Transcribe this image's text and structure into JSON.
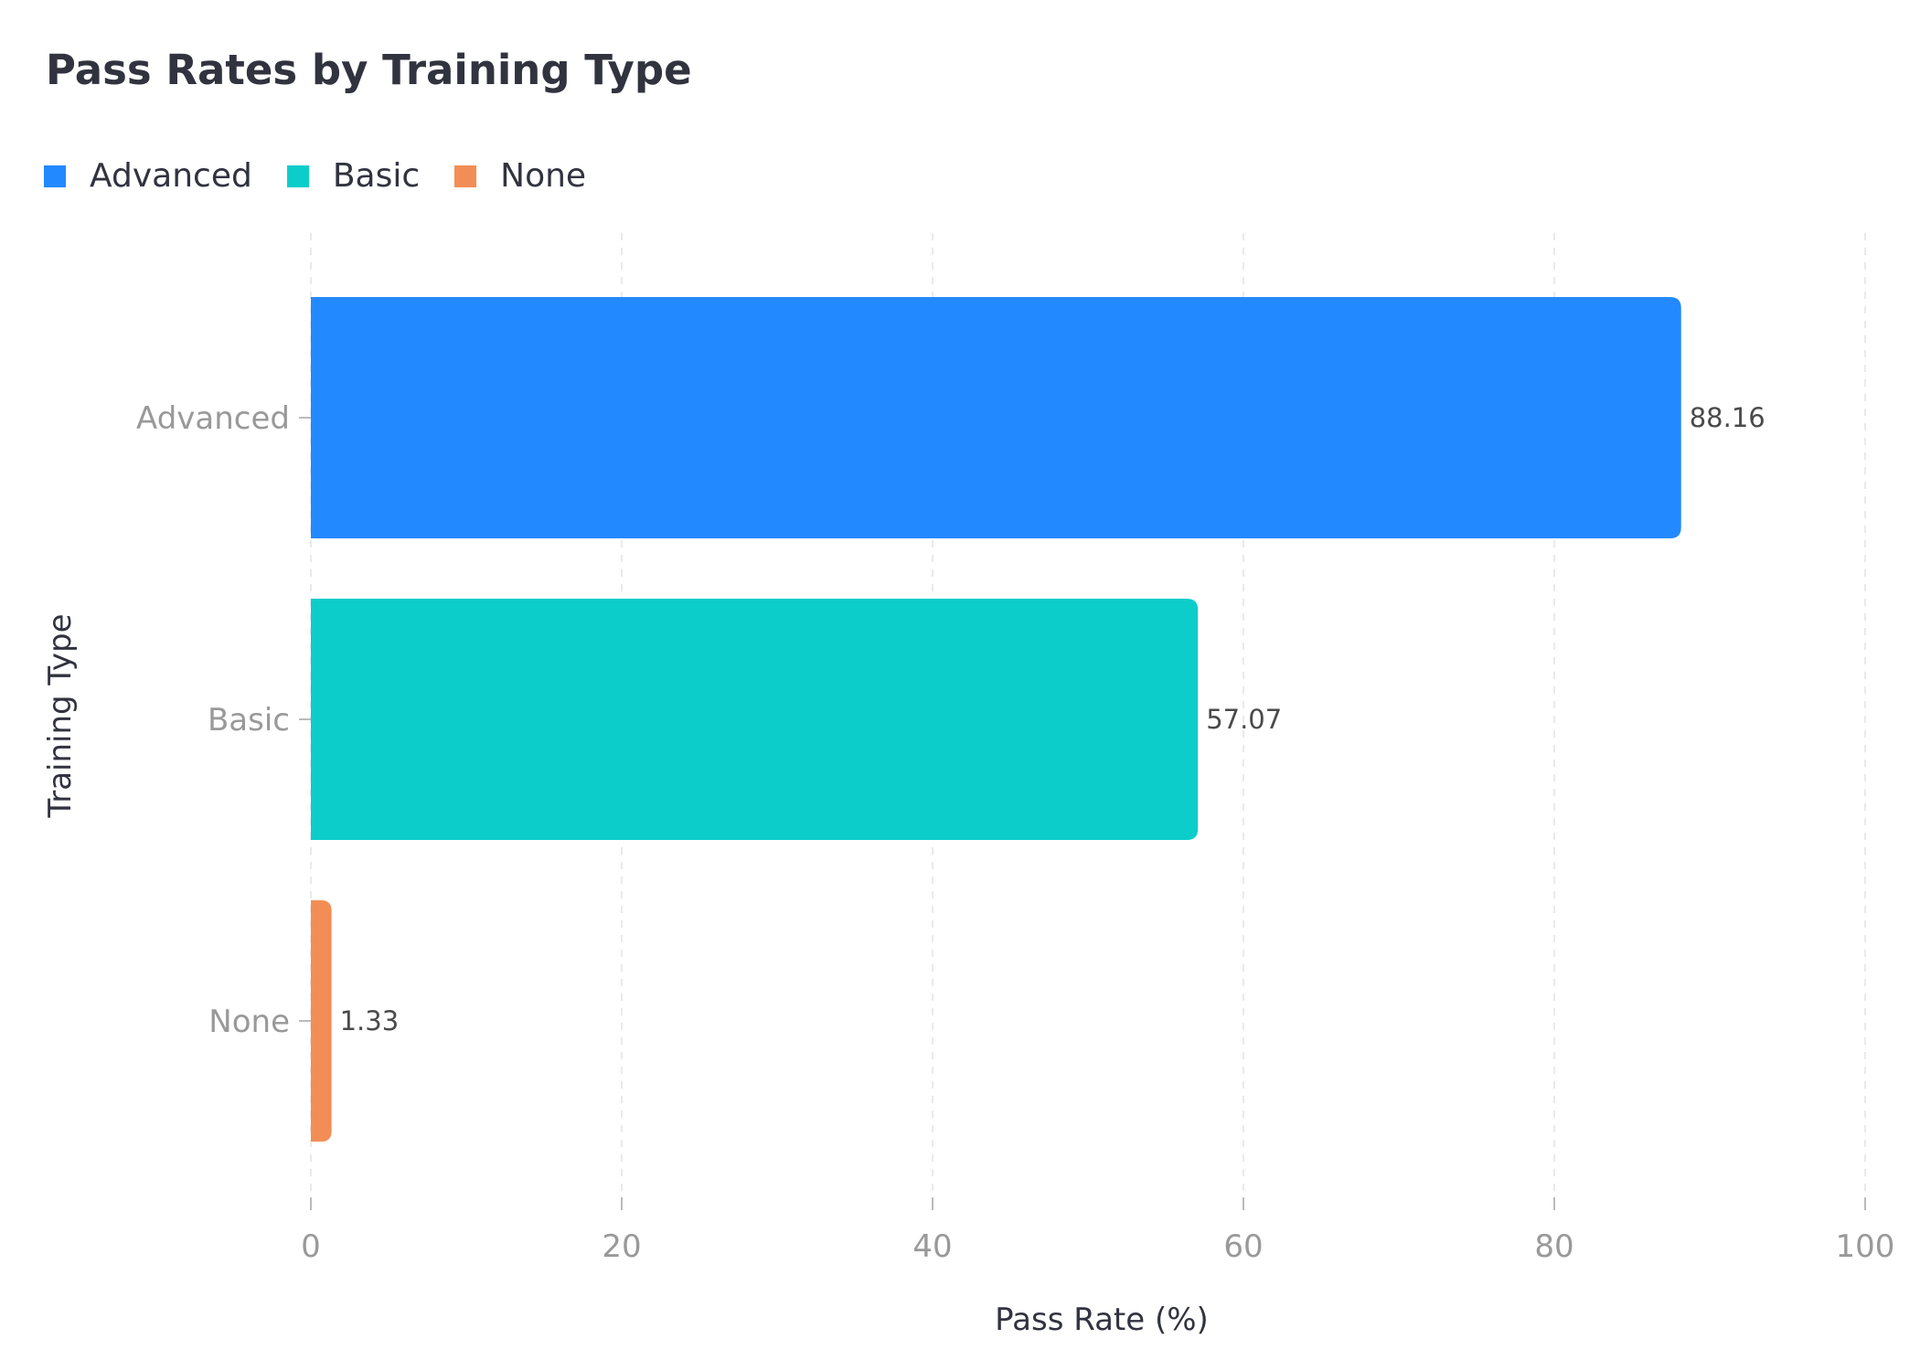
{
  "chart_data": {
    "type": "bar",
    "orientation": "horizontal",
    "title": "Pass Rates by Training Type",
    "xlabel": "Pass Rate (%)",
    "ylabel": "Training Type",
    "categories": [
      "Advanced",
      "Basic",
      "None"
    ],
    "values": [
      88.16,
      57.07,
      1.33
    ],
    "value_labels": [
      "88.16",
      "57.07",
      "1.33"
    ],
    "colors": [
      "#2389ff",
      "#0dcdcb",
      "#f28e55"
    ],
    "xlim": [
      0,
      100
    ],
    "xticks": [
      0,
      20,
      40,
      60,
      80,
      100
    ],
    "xtick_labels": [
      "0",
      "20",
      "40",
      "60",
      "80",
      "100"
    ],
    "grid": "vertical-dashed",
    "legend": {
      "placement": "top-left",
      "entries": [
        {
          "label": "Advanced",
          "color": "#2389ff"
        },
        {
          "label": "Basic",
          "color": "#0dcdcb"
        },
        {
          "label": "None",
          "color": "#f28e55"
        }
      ]
    }
  }
}
